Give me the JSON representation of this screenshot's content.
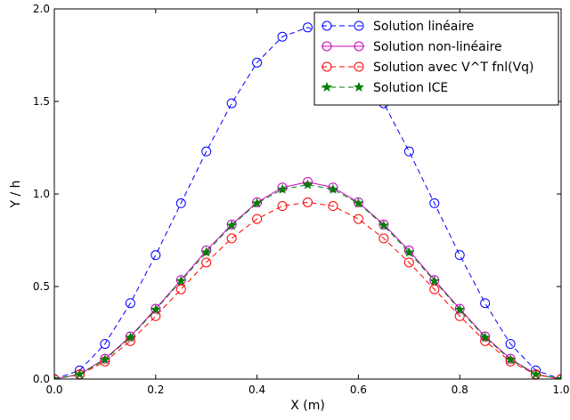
{
  "chart_data": {
    "type": "line",
    "xlabel": "X (m)",
    "ylabel": "Y / h",
    "xlim": [
      0.0,
      1.0
    ],
    "ylim": [
      0.0,
      2.0
    ],
    "x_ticks": [
      0.0,
      0.2,
      0.4,
      0.6,
      0.8,
      1.0
    ],
    "x_tick_labels": [
      "0.0",
      "0.2",
      "0.4",
      "0.6",
      "0.8",
      "1.0"
    ],
    "y_ticks": [
      0.0,
      0.5,
      1.0,
      1.5,
      2.0
    ],
    "y_tick_labels": [
      "0.0",
      "0.5",
      "1.0",
      "1.5",
      "2.0"
    ],
    "grid": false,
    "legend_position": "top-right",
    "x": [
      0.0,
      0.05,
      0.1,
      0.15,
      0.2,
      0.25,
      0.3,
      0.35,
      0.4,
      0.45,
      0.5,
      0.55,
      0.6,
      0.65,
      0.7,
      0.75,
      0.8,
      0.85,
      0.9,
      0.95,
      1.0
    ],
    "series": [
      {
        "name": "Solution linéaire",
        "color": "#0000ff",
        "line_style": "dashed",
        "marker": "circle-open",
        "values": [
          0.0,
          0.047,
          0.19,
          0.41,
          0.67,
          0.95,
          1.23,
          1.49,
          1.71,
          1.85,
          1.9,
          1.85,
          1.71,
          1.49,
          1.23,
          0.95,
          0.67,
          0.41,
          0.19,
          0.047,
          0.0
        ]
      },
      {
        "name": "Solution non-linéaire",
        "color": "#bf00bf",
        "line_style": "solid",
        "marker": "circle-open",
        "values": [
          0.0,
          0.026,
          0.11,
          0.23,
          0.38,
          0.535,
          0.695,
          0.835,
          0.955,
          1.035,
          1.065,
          1.035,
          0.955,
          0.835,
          0.695,
          0.535,
          0.38,
          0.23,
          0.11,
          0.026,
          0.0
        ]
      },
      {
        "name": "Solution avec V^T fnl(Vq)",
        "color": "#ff0000",
        "line_style": "dashed",
        "marker": "circle-open",
        "values": [
          0.0,
          0.024,
          0.095,
          0.205,
          0.34,
          0.485,
          0.63,
          0.76,
          0.865,
          0.935,
          0.955,
          0.935,
          0.865,
          0.76,
          0.63,
          0.485,
          0.34,
          0.205,
          0.095,
          0.024,
          0.0
        ]
      },
      {
        "name": "Solution ICE",
        "color": "#007f00",
        "line_style": "dashed",
        "marker": "star",
        "values": [
          0.0,
          0.026,
          0.105,
          0.225,
          0.375,
          0.53,
          0.685,
          0.83,
          0.95,
          1.025,
          1.05,
          1.025,
          0.95,
          0.83,
          0.685,
          0.53,
          0.375,
          0.225,
          0.105,
          0.026,
          0.0
        ]
      }
    ]
  }
}
